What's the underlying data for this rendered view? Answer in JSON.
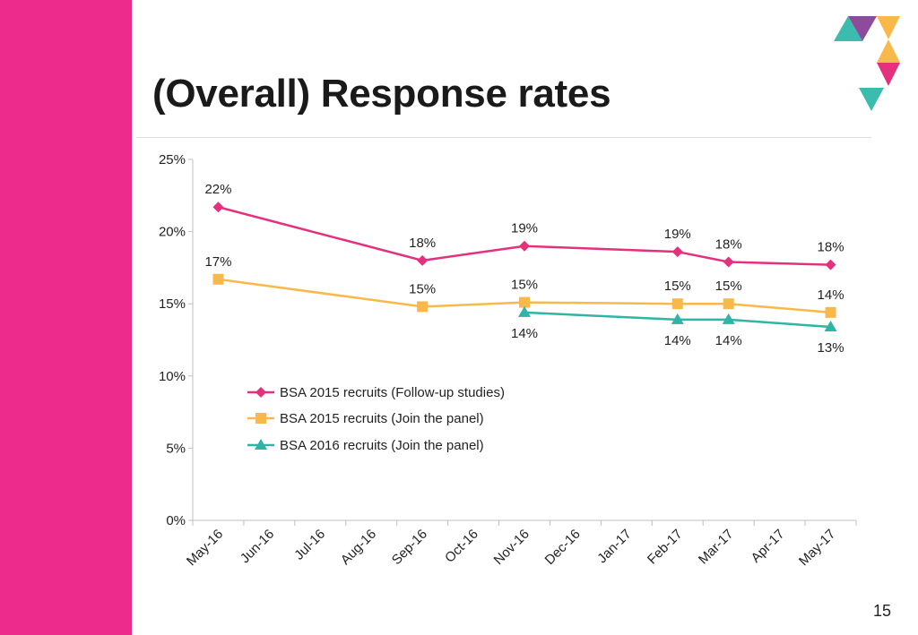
{
  "slide": {
    "title": "(Overall) Response rates",
    "page_number": "15"
  },
  "colors": {
    "sidebar": "#ec2b8c",
    "logo_teal": "#3bbcae",
    "logo_purple": "#8d4b9e",
    "logo_amber": "#f9b94a",
    "logo_pink": "#e5317d"
  },
  "chart_data": {
    "type": "line",
    "title": "",
    "xlabel": "",
    "ylabel": "",
    "ylim": [
      0,
      25
    ],
    "y_ticks": [
      0,
      5,
      10,
      15,
      20,
      25
    ],
    "y_tick_labels": [
      "0%",
      "5%",
      "10%",
      "15%",
      "20%",
      "25%"
    ],
    "categories": [
      "May-16",
      "Jun-16",
      "Jul-16",
      "Aug-16",
      "Sep-16",
      "Oct-16",
      "Nov-16",
      "Dec-16",
      "Jan-17",
      "Feb-17",
      "Mar-17",
      "Apr-17",
      "May-17"
    ],
    "grid": false,
    "legend_position": "lower-left inside plot",
    "series": [
      {
        "name": "BSA 2015 recruits (Follow-up studies)",
        "color": "#e5317d",
        "marker": "diamond",
        "values": [
          21.7,
          null,
          null,
          null,
          18.0,
          null,
          19.0,
          null,
          null,
          18.6,
          17.9,
          null,
          17.7
        ],
        "labels": [
          "22%",
          null,
          null,
          null,
          "18%",
          null,
          "19%",
          null,
          null,
          "19%",
          "18%",
          null,
          "18%"
        ]
      },
      {
        "name": "BSA 2015 recruits (Join the panel)",
        "color": "#f9b94a",
        "marker": "square",
        "values": [
          16.7,
          null,
          null,
          null,
          14.8,
          null,
          15.1,
          null,
          null,
          15.0,
          15.0,
          null,
          14.4
        ],
        "labels": [
          "17%",
          null,
          null,
          null,
          "15%",
          null,
          "15%",
          null,
          null,
          "15%",
          "15%",
          null,
          "14%"
        ]
      },
      {
        "name": "BSA 2016 recruits (Join the panel)",
        "color": "#2fb5a5",
        "marker": "triangle",
        "values": [
          null,
          null,
          null,
          null,
          null,
          null,
          14.4,
          null,
          null,
          13.9,
          13.9,
          null,
          13.4
        ],
        "labels": [
          null,
          null,
          null,
          null,
          null,
          null,
          "14%",
          null,
          null,
          "14%",
          "14%",
          null,
          "13%"
        ]
      }
    ]
  }
}
